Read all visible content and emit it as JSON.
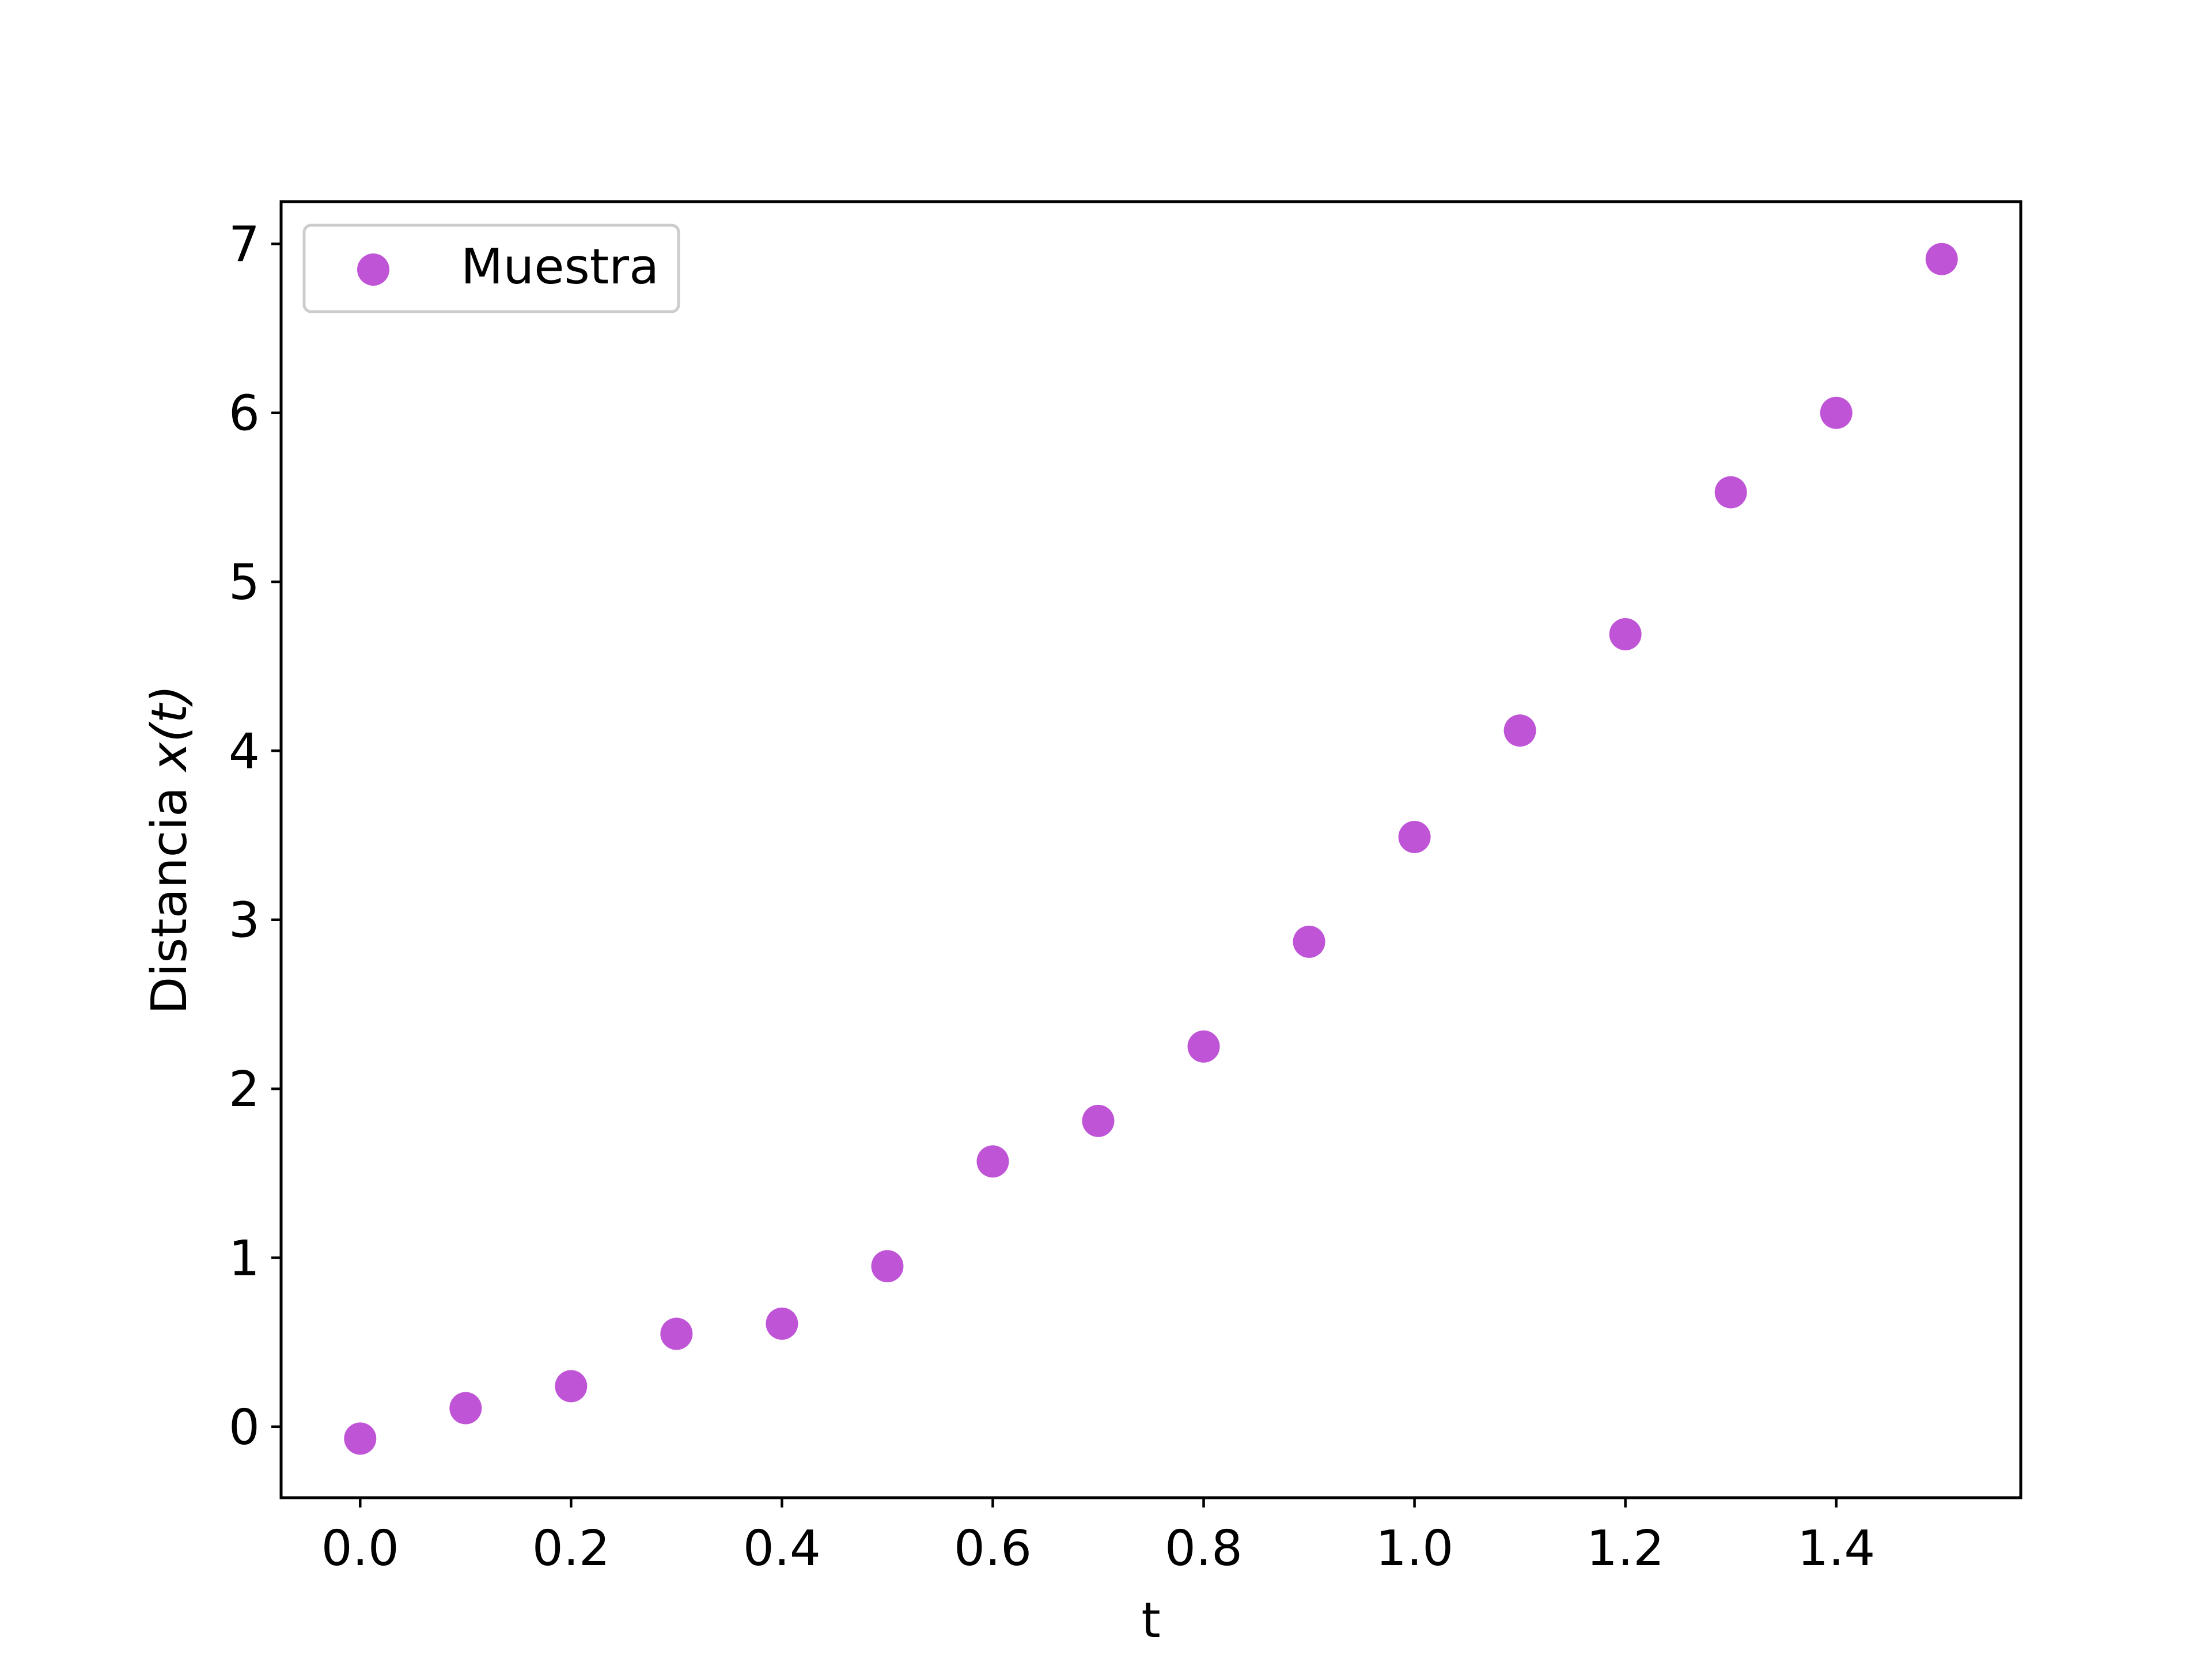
{
  "chart_data": {
    "type": "scatter",
    "title": "",
    "xlabel": "t",
    "ylabel": {
      "prefix": "Distancia ",
      "math": "x(t)"
    },
    "xlim": [
      -0.075,
      1.575
    ],
    "ylim": [
      -0.42,
      7.25
    ],
    "xticks": [
      0.0,
      0.2,
      0.4,
      0.6,
      0.8,
      1.0,
      1.2,
      1.4
    ],
    "xtick_labels": [
      "0.0",
      "0.2",
      "0.4",
      "0.6",
      "0.8",
      "1.0",
      "1.2",
      "1.4"
    ],
    "yticks": [
      0,
      1,
      2,
      3,
      4,
      5,
      6,
      7
    ],
    "ytick_labels": [
      "0",
      "1",
      "2",
      "3",
      "4",
      "5",
      "6",
      "7"
    ],
    "grid": false,
    "legend_position": "top-left",
    "series": [
      {
        "name": "Muestra",
        "color": "#bf55d6",
        "x": [
          0.0,
          0.1,
          0.2,
          0.3,
          0.4,
          0.5,
          0.6,
          0.7,
          0.8,
          0.9,
          1.0,
          1.1,
          1.2,
          1.3,
          1.4,
          1.5
        ],
        "y": [
          -0.07,
          0.11,
          0.24,
          0.55,
          0.61,
          0.95,
          1.57,
          1.81,
          2.25,
          2.87,
          3.49,
          4.12,
          4.69,
          5.53,
          6.0,
          6.91
        ]
      }
    ]
  }
}
